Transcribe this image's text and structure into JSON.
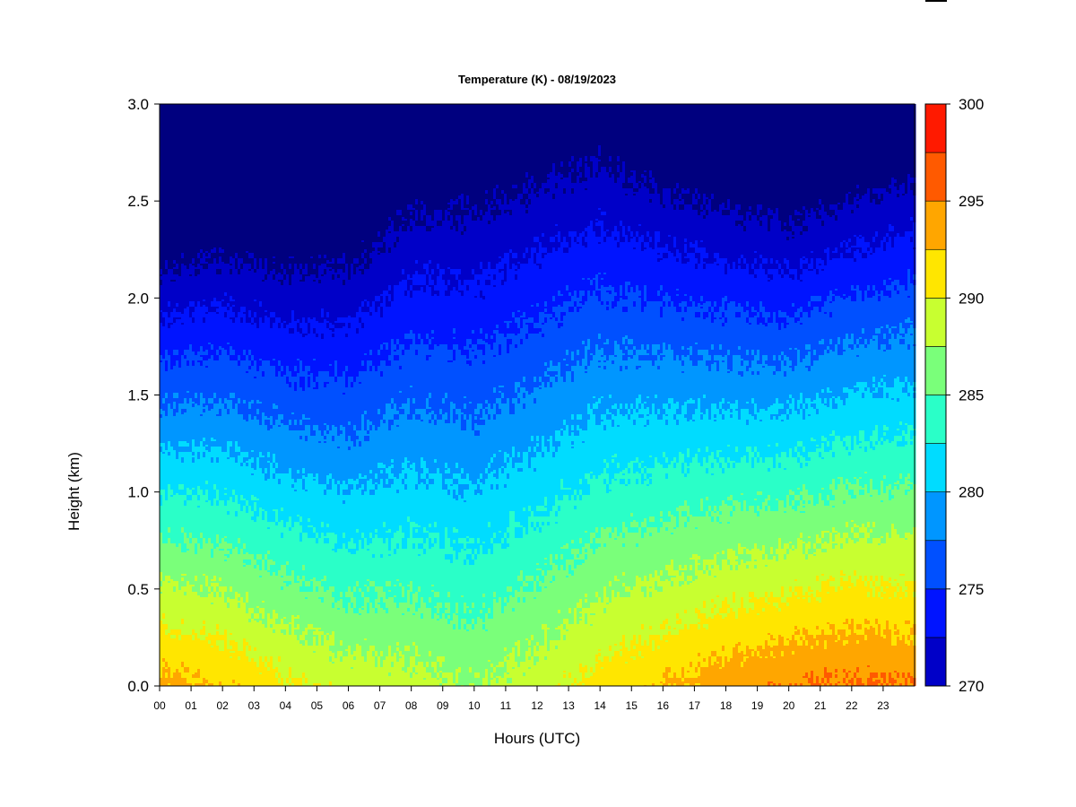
{
  "chart_data": {
    "type": "heatmap",
    "title": "Temperature (K) - 08/19/2023",
    "xlabel": "Hours (UTC)",
    "ylabel": "Height (km)",
    "x_ticks": [
      "00",
      "01",
      "02",
      "03",
      "04",
      "05",
      "06",
      "07",
      "08",
      "09",
      "10",
      "11",
      "12",
      "13",
      "14",
      "15",
      "16",
      "17",
      "18",
      "19",
      "20",
      "21",
      "22",
      "23"
    ],
    "xlim": [
      0,
      24
    ],
    "y_ticks": [
      "0.0",
      "0.5",
      "1.0",
      "1.5",
      "2.0",
      "2.5",
      "3.0"
    ],
    "ylim": [
      0,
      3.0
    ],
    "colorbar": {
      "range": [
        270,
        300
      ],
      "tick_labels": [
        "270",
        "275",
        "280",
        "285",
        "290",
        "295",
        "300"
      ],
      "levels": [
        270,
        272.5,
        275,
        277.5,
        280,
        282.5,
        285,
        287.5,
        290,
        292.5,
        295,
        297.5,
        300
      ],
      "colors": [
        "#00007F",
        "#0000C8",
        "#0014FF",
        "#0050FF",
        "#0096FF",
        "#00DCFF",
        "#2AFFC8",
        "#7AFF7A",
        "#C8FF30",
        "#FFE600",
        "#FFA600",
        "#FF5A00",
        "#FF1A00",
        "#C80000",
        "#7F0000"
      ]
    },
    "profiles": [
      {
        "hour": 0,
        "surface_temperature": 296.0,
        "lapse_rate_k_per_km": 11.0
      },
      {
        "hour": 2,
        "surface_temperature": 295.0,
        "lapse_rate_k_per_km": 10.2
      },
      {
        "hour": 4,
        "surface_temperature": 293.0,
        "lapse_rate_k_per_km": 9.6
      },
      {
        "hour": 6,
        "surface_temperature": 291.5,
        "lapse_rate_k_per_km": 8.8
      },
      {
        "hour": 8,
        "surface_temperature": 291.0,
        "lapse_rate_k_per_km": 7.6
      },
      {
        "hour": 10,
        "surface_temperature": 290.0,
        "lapse_rate_k_per_km": 7.2
      },
      {
        "hour": 12,
        "surface_temperature": 291.5,
        "lapse_rate_k_per_km": 7.4
      },
      {
        "hour": 14,
        "surface_temperature": 293.5,
        "lapse_rate_k_per_km": 7.8
      },
      {
        "hour": 16,
        "surface_temperature": 295.0,
        "lapse_rate_k_per_km": 8.8
      },
      {
        "hour": 18,
        "surface_temperature": 296.5,
        "lapse_rate_k_per_km": 9.8
      },
      {
        "hour": 20,
        "surface_temperature": 297.5,
        "lapse_rate_k_per_km": 10.5
      },
      {
        "hour": 22,
        "surface_temperature": 298.0,
        "lapse_rate_k_per_km": 10.2
      },
      {
        "hour": 24,
        "surface_temperature": 297.5,
        "lapse_rate_k_per_km": 9.6
      }
    ],
    "grid": false,
    "legend": "colorbar-right"
  }
}
